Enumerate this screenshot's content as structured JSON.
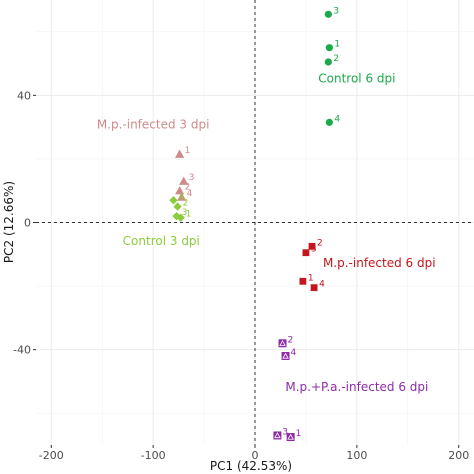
{
  "chart_data": {
    "type": "scatter",
    "xlabel": "PC1 (42.53%)",
    "ylabel": "PC2 (12.66%)",
    "xlim": [
      -215,
      215
    ],
    "ylim": [
      -70,
      70
    ],
    "x_ticks": [
      -200,
      -100,
      0,
      100,
      200
    ],
    "y_ticks": [
      -40,
      0,
      40
    ],
    "grid": true,
    "reference_lines": {
      "x": 0,
      "y": 0,
      "style": "dashed"
    },
    "groups": [
      {
        "name": "Control 6 dpi",
        "color": "#1aaa4a",
        "marker": "circle",
        "label_pos": [
          100,
          44
        ],
        "points": [
          {
            "x": 72,
            "y": 65.5,
            "label": "3"
          },
          {
            "x": 73,
            "y": 55,
            "label": "1"
          },
          {
            "x": 72,
            "y": 50.5,
            "label": "2"
          },
          {
            "x": 73,
            "y": 31.5,
            "label": "4"
          }
        ]
      },
      {
        "name": "M.p.-infected  3 dpi",
        "color": "#d08a8a",
        "marker": "triangle",
        "label_pos": [
          -100,
          29.5
        ],
        "points": [
          {
            "x": -74,
            "y": 21.5,
            "label": "1"
          },
          {
            "x": -70,
            "y": 13,
            "label": "3"
          },
          {
            "x": -74,
            "y": 10,
            "label": "2"
          },
          {
            "x": -72,
            "y": 8,
            "label": "4"
          }
        ]
      },
      {
        "name": "Control 3 dpi",
        "color": "#8ccc3c",
        "marker": "diamond",
        "label_pos": [
          -92,
          -7
        ],
        "points": [
          {
            "x": -80,
            "y": 7,
            "label": "4"
          },
          {
            "x": -76,
            "y": 5,
            "label": "2"
          },
          {
            "x": -77,
            "y": 2,
            "label": "3"
          },
          {
            "x": -73,
            "y": 1.5,
            "label": "1"
          }
        ]
      },
      {
        "name": "M.p.-infected  6 dpi",
        "color": "#c4161c",
        "marker": "square",
        "label_pos": [
          122,
          -14
        ],
        "points": [
          {
            "x": 56,
            "y": -7.5,
            "label": "2"
          },
          {
            "x": 50,
            "y": -9.5,
            "label": "3"
          },
          {
            "x": 47,
            "y": -18.5,
            "label": "1"
          },
          {
            "x": 58,
            "y": -20.5,
            "label": "4"
          }
        ]
      },
      {
        "name": "M.p.+P.a.-infected  6 dpi",
        "color": "#8e2ca8",
        "marker": "boxed-triangle",
        "label_pos": [
          100,
          -53
        ],
        "points": [
          {
            "x": 27,
            "y": -38,
            "label": "2"
          },
          {
            "x": 30,
            "y": -42,
            "label": "4"
          },
          {
            "x": 22,
            "y": -67,
            "label": "3"
          },
          {
            "x": 35,
            "y": -67.5,
            "label": "1"
          }
        ]
      }
    ]
  }
}
